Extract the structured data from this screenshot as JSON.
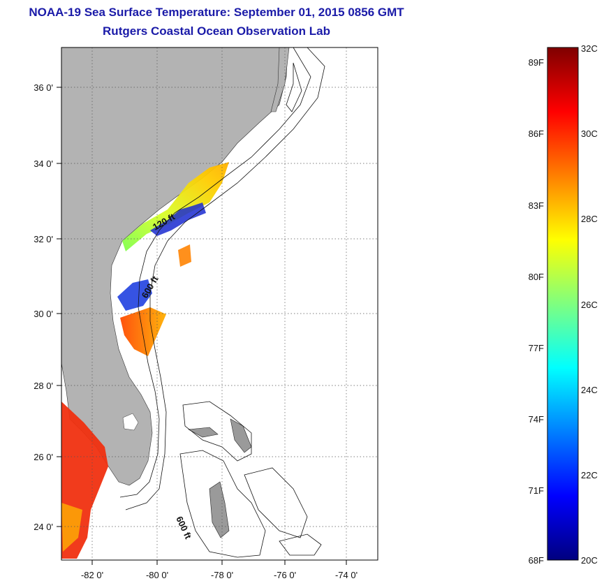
{
  "header": {
    "title": "NOAA-19 Sea Surface Temperature:  September 01, 2015 0856 GMT",
    "subtitle": "Rutgers Coastal Ocean Observation Lab"
  },
  "map": {
    "lon_labels": [
      "-82 0'",
      "-80 0'",
      "-78 0'",
      "-76 0'",
      "-74 0'"
    ],
    "lat_labels": [
      "36 0'",
      "34 0'",
      "32 0'",
      "30 0'",
      "28 0'",
      "26 0'",
      "24 0'"
    ],
    "bathymetry_labels": [
      "120 ft",
      "600 ft",
      "600 ft"
    ],
    "land_color": "#b3b3b3"
  },
  "colorbar": {
    "fahrenheit_labels": [
      "89F",
      "86F",
      "83F",
      "80F",
      "77F",
      "74F",
      "71F",
      "68F"
    ],
    "celsius_labels": [
      "32C",
      "30C",
      "28C",
      "26C",
      "24C",
      "22C",
      "20C"
    ],
    "colors": [
      "#00007f",
      "#0000ff",
      "#007fff",
      "#00ffff",
      "#7fff7f",
      "#ffff00",
      "#ff7f00",
      "#ff0000",
      "#7f0000"
    ]
  }
}
